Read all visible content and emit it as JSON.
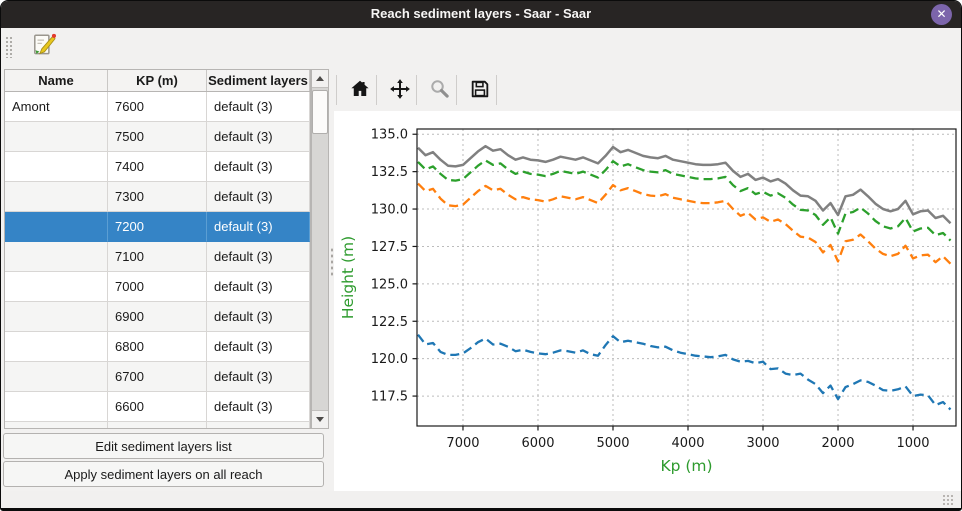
{
  "window": {
    "title": "Reach sediment layers - Saar - Saar",
    "close_glyph": "✕"
  },
  "icons": {
    "toolbar": "edit-icon",
    "plot_toolbar": [
      "home-icon",
      "pan-icon",
      "zoom-icon",
      "save-icon"
    ],
    "scrollbar": [
      "scroll-up-icon",
      "scroll-down-icon"
    ]
  },
  "colors": {
    "titlebar": "#282524",
    "close_button": "#7c65ab",
    "selection": "#3584c6",
    "axis_label": "#2e9b2e",
    "series_gray": "#808080",
    "series_green": "#2ca02c",
    "series_orange": "#ff7f0e",
    "series_blue": "#1f77b4"
  },
  "table": {
    "columns": [
      "Name",
      "KP (m)",
      "Sediment layers"
    ],
    "selected_row_index": 4,
    "rows": [
      {
        "name": "Amont",
        "kp": "7600",
        "layers": "default (3)"
      },
      {
        "name": "",
        "kp": "7500",
        "layers": "default (3)"
      },
      {
        "name": "",
        "kp": "7400",
        "layers": "default (3)"
      },
      {
        "name": "",
        "kp": "7300",
        "layers": "default (3)"
      },
      {
        "name": "",
        "kp": "7200",
        "layers": "default (3)"
      },
      {
        "name": "",
        "kp": "7100",
        "layers": "default (3)"
      },
      {
        "name": "",
        "kp": "7000",
        "layers": "default (3)"
      },
      {
        "name": "",
        "kp": "6900",
        "layers": "default (3)"
      },
      {
        "name": "",
        "kp": "6800",
        "layers": "default (3)"
      },
      {
        "name": "",
        "kp": "6700",
        "layers": "default (3)"
      },
      {
        "name": "",
        "kp": "6600",
        "layers": "default (3)"
      }
    ]
  },
  "buttons": {
    "edit": "Edit sediment layers list",
    "apply": "Apply sediment layers on all reach"
  },
  "chart_data": {
    "type": "line",
    "xlabel": "Kp (m)",
    "ylabel": "Height (m)",
    "axis_label_color": "#2e9b2e",
    "x_reversed": true,
    "grid": true,
    "legend": null,
    "xlim": [
      7613,
      427
    ],
    "ylim": [
      115.5,
      135.35
    ],
    "xticks": [
      7000,
      6000,
      5000,
      4000,
      3000,
      2000,
      1000
    ],
    "ytick_labels": [
      "135.0",
      "132.5",
      "130.0",
      "127.5",
      "125.0",
      "122.5",
      "120.0",
      "117.5"
    ],
    "x": [
      7600,
      7500,
      7400,
      7300,
      7200,
      7100,
      7000,
      6900,
      6800,
      6700,
      6600,
      6500,
      6400,
      6300,
      6200,
      6100,
      6000,
      5900,
      5800,
      5700,
      5600,
      5500,
      5400,
      5300,
      5200,
      5100,
      5000,
      4900,
      4800,
      4700,
      4600,
      4500,
      4400,
      4300,
      4200,
      4100,
      4000,
      3900,
      3800,
      3700,
      3600,
      3500,
      3400,
      3300,
      3200,
      3100,
      3000,
      2900,
      2800,
      2700,
      2600,
      2500,
      2400,
      2300,
      2200,
      2100,
      2000,
      1900,
      1800,
      1700,
      1600,
      1500,
      1400,
      1300,
      1200,
      1100,
      1000,
      900,
      800,
      700,
      600,
      500
    ],
    "series": [
      {
        "name": "gray-solid",
        "color": "#808080",
        "width": 2.5,
        "dash": false,
        "values": [
          134.1,
          133.6,
          133.8,
          133.3,
          132.9,
          132.85,
          132.95,
          133.4,
          133.85,
          134.2,
          133.9,
          134.0,
          133.6,
          133.3,
          133.45,
          133.3,
          133.25,
          133.15,
          133.3,
          133.5,
          133.4,
          133.3,
          133.45,
          133.25,
          133.05,
          133.55,
          134.15,
          133.8,
          133.95,
          133.75,
          133.55,
          133.45,
          133.4,
          133.55,
          133.3,
          133.2,
          133.1,
          133.0,
          132.95,
          132.95,
          133.0,
          133.1,
          132.55,
          132.15,
          132.35,
          131.95,
          132.1,
          131.85,
          132.0,
          131.7,
          131.25,
          130.9,
          130.85,
          130.55,
          129.9,
          130.4,
          129.6,
          130.85,
          130.95,
          131.3,
          130.85,
          130.35,
          130.0,
          129.85,
          130.0,
          130.55,
          129.65,
          129.85,
          129.9,
          129.4,
          129.55,
          129.05
        ]
      },
      {
        "name": "green-dashed",
        "color": "#2ca02c",
        "width": 2.3,
        "dash": true,
        "values": [
          133.15,
          132.65,
          132.85,
          132.35,
          131.95,
          131.9,
          132.0,
          132.45,
          132.9,
          133.25,
          132.95,
          133.05,
          132.65,
          132.35,
          132.5,
          132.35,
          132.3,
          132.2,
          132.35,
          132.55,
          132.45,
          132.35,
          132.5,
          132.3,
          132.1,
          132.6,
          133.2,
          132.85,
          133.0,
          132.8,
          132.6,
          132.5,
          132.45,
          132.6,
          132.35,
          132.25,
          132.15,
          132.05,
          132.0,
          132.0,
          132.05,
          132.15,
          131.6,
          131.2,
          131.4,
          131.0,
          131.15,
          130.9,
          131.05,
          130.75,
          130.3,
          129.95,
          129.9,
          129.6,
          128.95,
          129.45,
          128.35,
          129.7,
          129.8,
          130.1,
          129.7,
          129.2,
          128.85,
          128.7,
          128.85,
          129.4,
          128.5,
          128.7,
          128.75,
          128.25,
          128.4,
          127.9
        ]
      },
      {
        "name": "orange-dashed",
        "color": "#ff7f0e",
        "width": 2.3,
        "dash": true,
        "values": [
          131.7,
          131.2,
          131.35,
          130.7,
          130.25,
          130.2,
          130.3,
          130.75,
          131.2,
          131.55,
          131.25,
          131.35,
          130.95,
          130.65,
          130.8,
          130.65,
          130.6,
          130.5,
          130.65,
          130.85,
          130.75,
          130.65,
          130.8,
          130.6,
          130.4,
          130.95,
          131.6,
          131.25,
          131.4,
          131.2,
          131.0,
          130.9,
          130.85,
          131.0,
          130.75,
          130.65,
          130.55,
          130.45,
          130.4,
          130.4,
          130.45,
          130.55,
          130.0,
          129.55,
          129.75,
          129.3,
          129.45,
          129.15,
          129.3,
          129.0,
          128.55,
          128.15,
          128.1,
          127.8,
          127.1,
          127.6,
          126.5,
          127.85,
          127.95,
          128.3,
          127.85,
          127.35,
          127.0,
          126.85,
          127.0,
          127.55,
          126.7,
          126.9,
          126.95,
          126.45,
          126.85,
          126.35
        ]
      },
      {
        "name": "blue-dashed",
        "color": "#1f77b4",
        "width": 2.3,
        "dash": true,
        "values": [
          121.6,
          120.95,
          121.05,
          120.45,
          120.25,
          120.25,
          120.35,
          120.7,
          121.1,
          121.35,
          120.95,
          121.0,
          120.8,
          120.5,
          120.6,
          120.45,
          120.35,
          120.3,
          120.4,
          120.55,
          120.5,
          120.4,
          120.55,
          120.3,
          120.2,
          120.9,
          121.5,
          121.1,
          121.2,
          121.1,
          121.0,
          120.85,
          120.75,
          120.8,
          120.55,
          120.4,
          120.3,
          120.2,
          120.15,
          120.1,
          120.15,
          120.25,
          119.95,
          119.8,
          119.85,
          119.7,
          119.8,
          119.3,
          119.35,
          119.0,
          118.9,
          119.0,
          118.6,
          118.3,
          117.7,
          118.2,
          117.3,
          118.1,
          118.3,
          118.55,
          118.45,
          118.2,
          117.9,
          117.85,
          117.95,
          118.15,
          117.5,
          117.6,
          117.55,
          116.9,
          117.1,
          116.6
        ]
      }
    ]
  }
}
